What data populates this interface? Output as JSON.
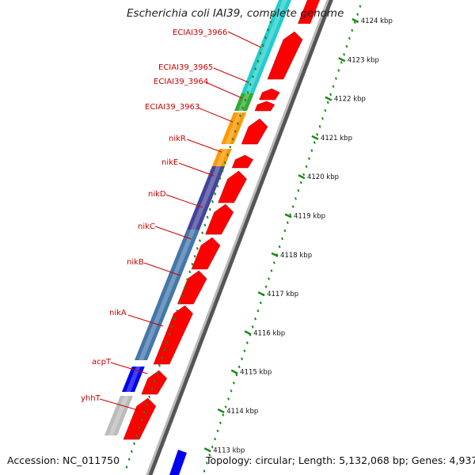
{
  "title": "Escherichia coli IAI39, complete genome",
  "footer": {
    "accession": "Accession: NC_011750",
    "summary": "Topology: circular; Length: 5,132,068 bp; Genes: 4,937"
  },
  "scale_ticks": [
    "4124 kbp",
    "4123 kbp",
    "4122 kbp",
    "4121 kbp",
    "4120 kbp",
    "4119 kbp",
    "4118 kbp",
    "4117 kbp",
    "4116 kbp",
    "4115 kbp",
    "4114 kbp",
    "4113 kbp"
  ],
  "genes": [
    {
      "name": "ECIAI39_3966",
      "color": "#22cccc"
    },
    {
      "name": "ECIAI39_3965",
      "color": "#22cccc"
    },
    {
      "name": "ECIAI39_3964",
      "color": "#33aa33"
    },
    {
      "name": "ECIAI39_3963",
      "color": "#ff9900"
    },
    {
      "name": "nikR",
      "color": "#ff9900"
    },
    {
      "name": "nikE",
      "color": "#444499"
    },
    {
      "name": "nikD",
      "color": "#444499"
    },
    {
      "name": "nikC",
      "color": "#4477aa"
    },
    {
      "name": "nikB",
      "color": "#4477aa"
    },
    {
      "name": "nikA",
      "color": "#4477aa"
    },
    {
      "name": "acpT",
      "color": "#0000ee"
    },
    {
      "name": "yhhT",
      "color": "#bbbbbb"
    }
  ],
  "colors": {
    "cds": "#ff0000",
    "label": "#cc0000",
    "tick": "#1a8a1a"
  }
}
